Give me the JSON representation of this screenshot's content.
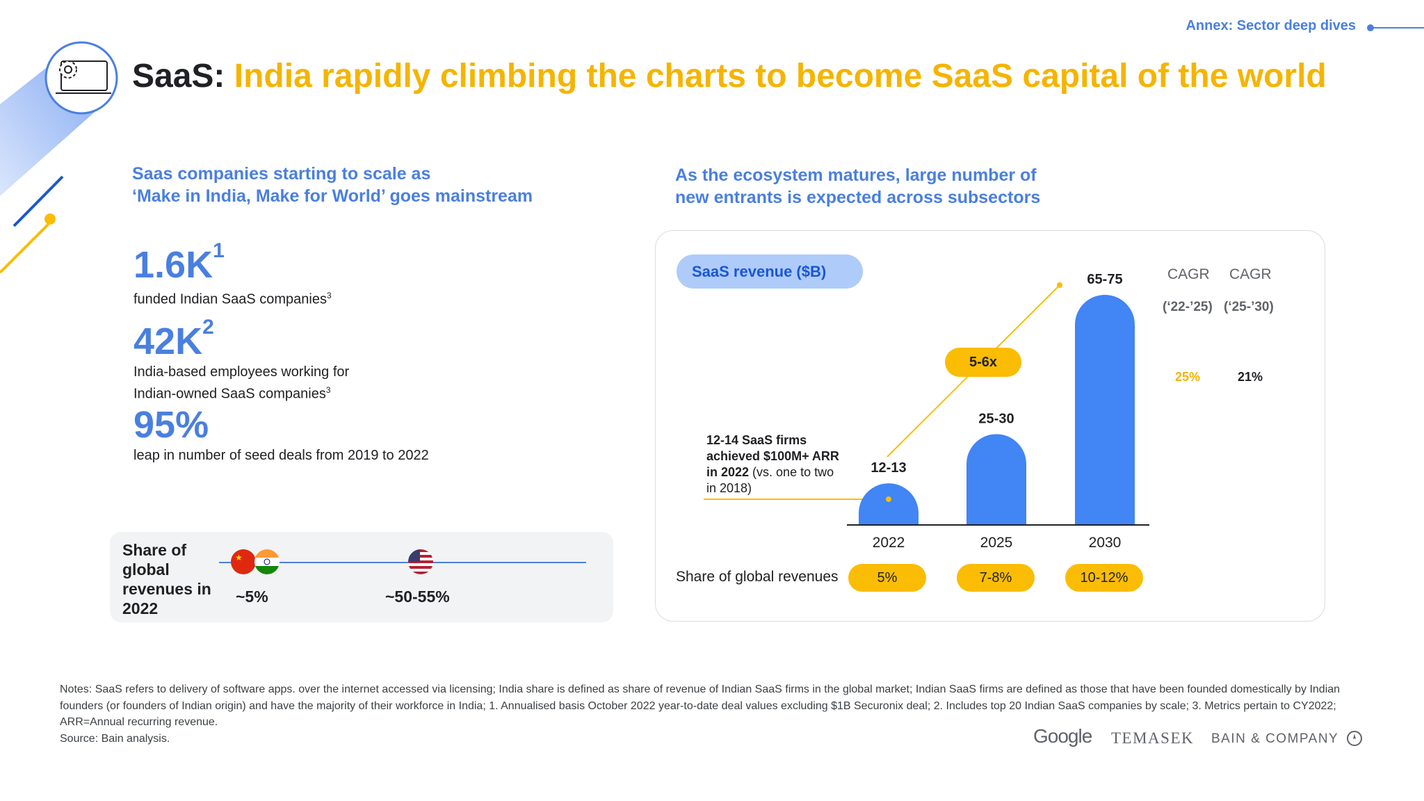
{
  "header": {
    "annex_label": "Annex: Sector deep dives",
    "title_lead": "SaaS:",
    "title_rest": "India rapidly climbing the charts to become SaaS capital of the world"
  },
  "left": {
    "subtitle": "Saas companies starting to scale as\n‘Make in India, Make for World’ goes mainstream",
    "stats": [
      {
        "value": "1.6K",
        "sup": "1",
        "desc": "funded Indian SaaS companies",
        "desc_sup": "3"
      },
      {
        "value": "42K",
        "sup": "2",
        "desc": "India-based employees working for\nIndian-owned SaaS companies",
        "desc_sup": "3"
      },
      {
        "value": "95%",
        "sup": "",
        "desc": "leap in number of seed deals from 2019 to 2022",
        "desc_sup": ""
      }
    ],
    "share": {
      "label": "Share of global revenues in 2022",
      "china_india_value": "~5%",
      "us_value": "~50-55%"
    }
  },
  "right": {
    "subtitle": "As the ecosystem matures, large number of\nnew entrants is expected across subsectors",
    "pill_label": "SaaS revenue ($B)",
    "cagr": {
      "h1": "CAGR",
      "h2": "CAGR",
      "s1": "(‘22-’25)",
      "s2": "(‘25-’30)",
      "v1": "25%",
      "v2": "21%"
    },
    "multiplier": "5-6x",
    "annotation_bold": "12-14 SaaS firms achieved $100M+ ARR in 2022",
    "annotation_rest": " (vs. one to two in 2018)",
    "share_row_label": "Share of global revenues",
    "share_values": [
      "5%",
      "7-8%",
      "10-12%"
    ]
  },
  "chart_data": {
    "type": "bar",
    "title": "SaaS revenue ($B)",
    "categories": [
      "2022",
      "2025",
      "2030"
    ],
    "value_labels": [
      "12-13",
      "25-30",
      "65-75"
    ],
    "values": [
      12.5,
      27.5,
      70
    ],
    "ylim": [
      0,
      70
    ],
    "bar_color": "#4285f4",
    "grid": false
  },
  "footer": {
    "notes": "Notes: SaaS refers to delivery of software apps. over the internet accessed via licensing; India share is defined as share of revenue of Indian SaaS firms in the global market; Indian SaaS firms are defined as those that have been founded domestically by Indian founders (or founders of Indian origin) and have the majority of their workforce in India; 1. Annualised basis October 2022 year-to-date deal values excluding $1B Securonix deal; 2. Includes top 20 Indian SaaS companies by scale; 3. Metrics pertain to CY2022; ARR=Annual recurring revenue.",
    "source": "Source: Bain analysis.",
    "logo_google": "Google",
    "logo_temasek": "TEMASEK",
    "logo_bain": "BAIN & COMPANY"
  },
  "colors": {
    "accent_blue": "#4a7fe0",
    "accent_yellow": "#f5b400",
    "bar_blue": "#4285f4"
  }
}
